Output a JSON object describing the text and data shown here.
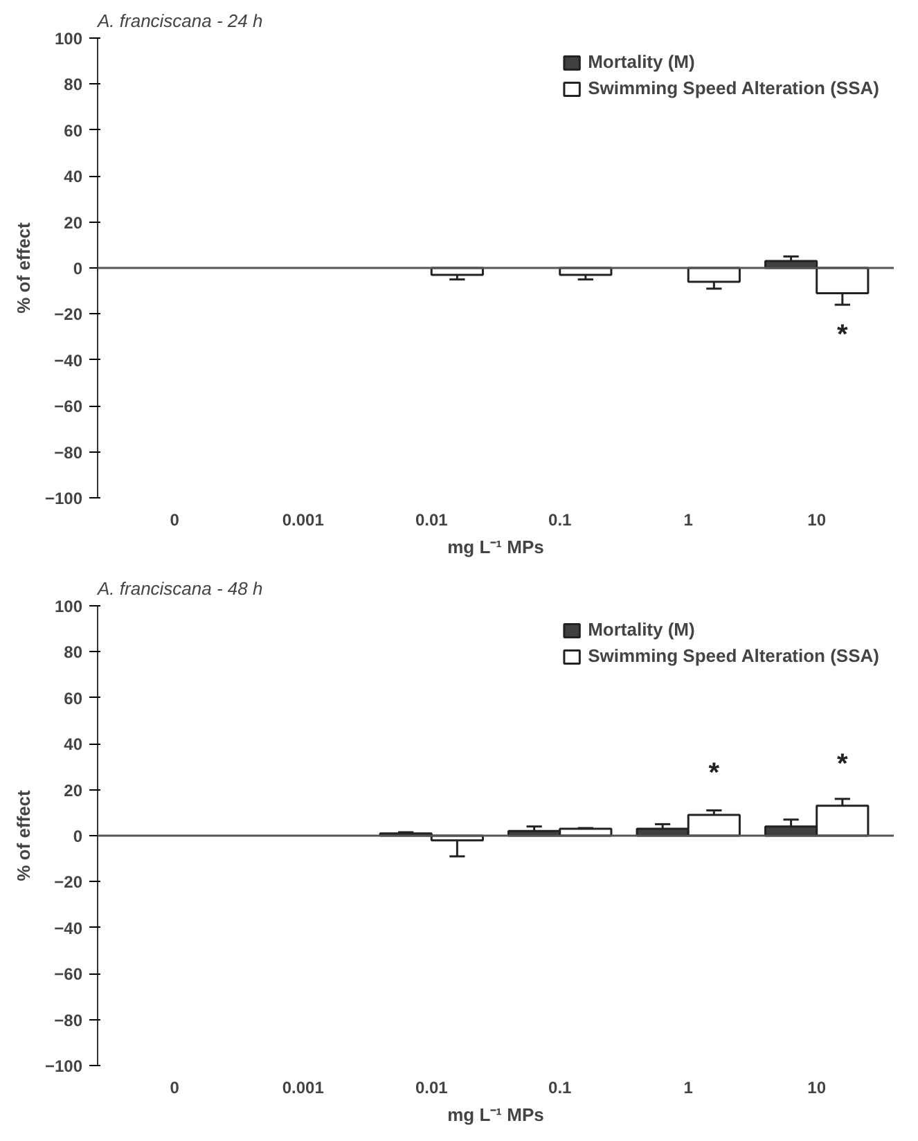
{
  "chart_data": [
    {
      "type": "bar",
      "title": "A. franciscana - 24 h",
      "xlabel": "mg L⁻¹ MPs",
      "ylabel": "% of effect",
      "categories": [
        "0",
        "0.001",
        "0.01",
        "0.1",
        "1",
        "10"
      ],
      "series": [
        {
          "name": "Mortality (M)",
          "color": "#404040",
          "values": [
            null,
            null,
            null,
            null,
            null,
            3
          ],
          "errors": [
            null,
            null,
            null,
            null,
            null,
            2
          ]
        },
        {
          "name": "Swimming Speed Alteration (SSA)",
          "color": "#ffffff",
          "values": [
            null,
            null,
            -3,
            -3,
            -6,
            -11
          ],
          "errors": [
            null,
            null,
            2,
            2,
            3,
            5
          ]
        }
      ],
      "ylim": [
        -100,
        100
      ],
      "yticks": [
        -100,
        -80,
        -60,
        -40,
        -20,
        0,
        20,
        40,
        60,
        80,
        100
      ],
      "legend": "top right",
      "annotations": [
        {
          "text": "*",
          "x": "10",
          "y": -11
        }
      ]
    },
    {
      "type": "bar",
      "title": "A. franciscana - 48 h",
      "xlabel": "mg L⁻¹ MPs",
      "ylabel": "% of effect",
      "categories": [
        "0",
        "0.001",
        "0.01",
        "0.1",
        "1",
        "10"
      ],
      "series": [
        {
          "name": "Mortality (M)",
          "color": "#404040",
          "values": [
            null,
            null,
            1,
            2,
            3,
            4
          ],
          "errors": [
            null,
            null,
            0.5,
            2,
            2,
            3
          ]
        },
        {
          "name": "Swimming Speed Alteration (SSA)",
          "color": "#ffffff",
          "values": [
            null,
            null,
            -2,
            3,
            9,
            13
          ],
          "errors": [
            null,
            null,
            7,
            0.3,
            2,
            3
          ]
        }
      ],
      "ylim": [
        -100,
        100
      ],
      "yticks": [
        -100,
        -80,
        -60,
        -40,
        -20,
        0,
        20,
        40,
        60,
        80,
        100
      ],
      "legend": "top right",
      "annotations": [
        {
          "text": "*",
          "x": "1",
          "y": 9
        },
        {
          "text": "*",
          "x": "10",
          "y": 13
        }
      ]
    }
  ]
}
